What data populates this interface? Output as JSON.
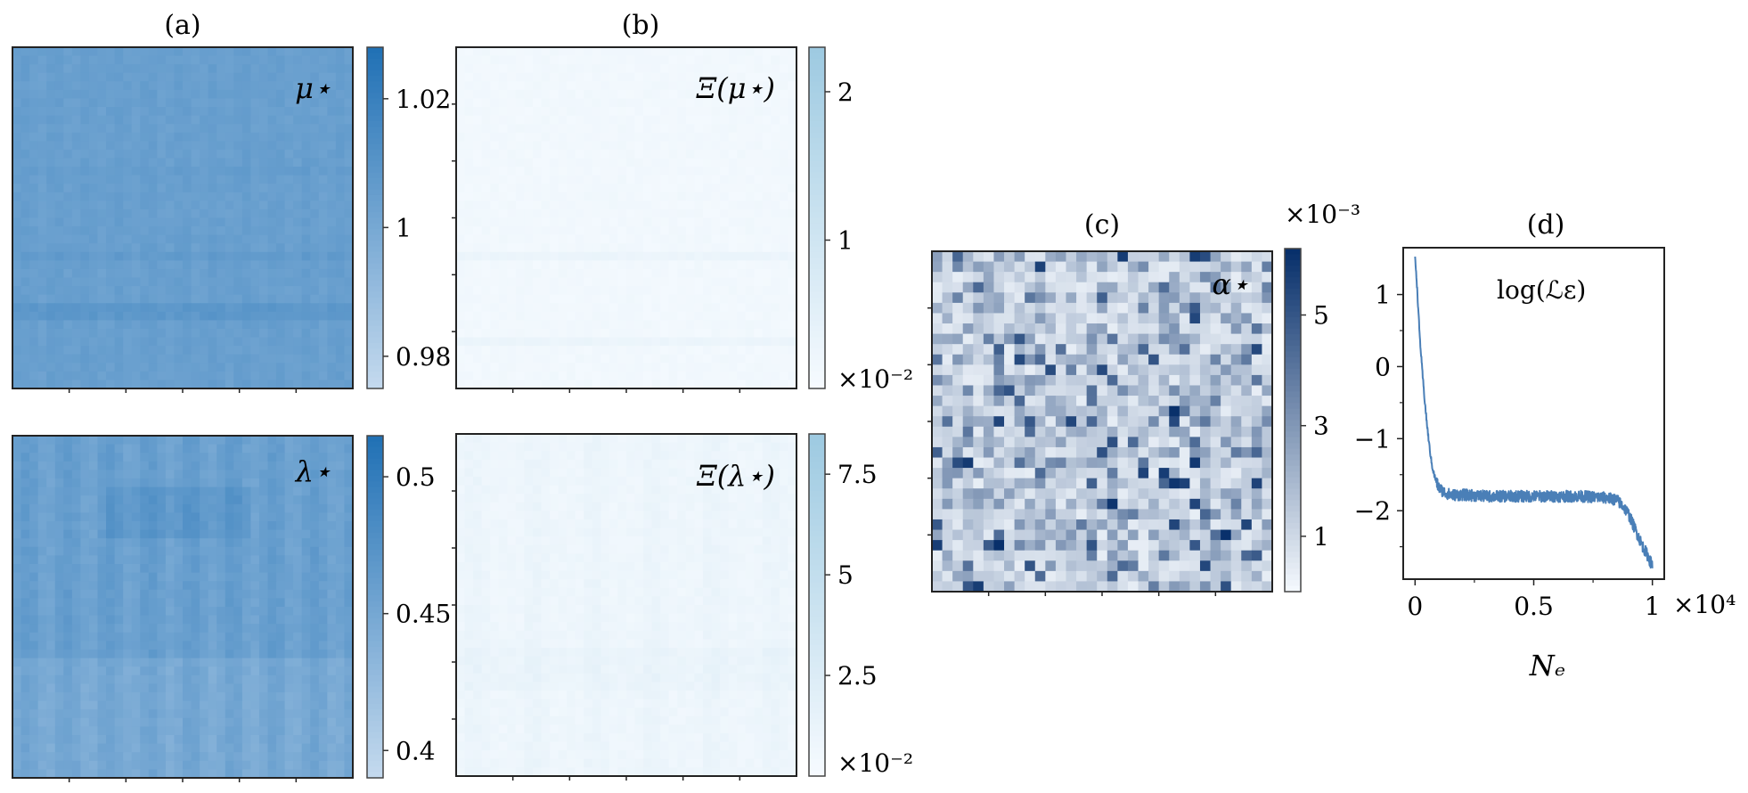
{
  "figure": {
    "panels": [
      {
        "id": "a",
        "label": "(a)"
      },
      {
        "id": "b",
        "label": "(b)"
      },
      {
        "id": "c",
        "label": "(c)"
      },
      {
        "id": "d",
        "label": "(d)"
      }
    ]
  },
  "chart_data": [
    {
      "type": "heatmap",
      "panel": "(a) top",
      "title": "",
      "annotation": "μ⋆",
      "colorbar": {
        "ticks": [
          "1.02",
          "1",
          "0.98"
        ],
        "tick_values": [
          1.02,
          1.0,
          0.98
        ],
        "range": [
          0.975,
          1.028
        ]
      },
      "colormap": [
        "#c6dbef",
        "#2171b5"
      ],
      "grid": {
        "rows": 40,
        "cols": 40
      },
      "value_level": 1.005,
      "pattern": "near-uniform mid-blue with faint horizontal striping"
    },
    {
      "type": "heatmap",
      "panel": "(a) bottom",
      "title": "",
      "annotation": "λ⋆",
      "colorbar": {
        "ticks": [
          "0.5",
          "0.45",
          "0.4"
        ],
        "tick_values": [
          0.5,
          0.45,
          0.4
        ],
        "range": [
          0.39,
          0.515
        ]
      },
      "colormap": [
        "#c6dbef",
        "#2171b5"
      ],
      "grid": {
        "rows": 40,
        "cols": 40
      },
      "value_level": 0.46,
      "pattern": "near-uniform mid-blue with faint vertical striping"
    },
    {
      "type": "heatmap",
      "panel": "(b) top",
      "title": "",
      "annotation": "Ξ(μ⋆)",
      "colorbar": {
        "ticks": [
          "2",
          "1"
        ],
        "tick_values": [
          2,
          1
        ],
        "range": [
          0,
          2.3
        ],
        "offset_label": "×10⁻²"
      },
      "colormap": [
        "#f7fbff",
        "#9ecae1"
      ],
      "grid": {
        "rows": 40,
        "cols": 40
      },
      "value_level": 0.1,
      "pattern": "very light, nearly white"
    },
    {
      "type": "heatmap",
      "panel": "(b) bottom",
      "title": "",
      "annotation": "Ξ(λ⋆)",
      "colorbar": {
        "ticks": [
          "7.5",
          "5",
          "2.5"
        ],
        "tick_values": [
          7.5,
          5,
          2.5
        ],
        "range": [
          0,
          8.5
        ],
        "offset_label": "×10⁻²"
      },
      "colormap": [
        "#f7fbff",
        "#9ecae1"
      ],
      "grid": {
        "rows": 40,
        "cols": 40
      },
      "value_level": 0.6,
      "pattern": "very light with faint blotches"
    },
    {
      "type": "heatmap",
      "panel": "(c)",
      "title": "",
      "annotation": "α⋆",
      "colorbar": {
        "ticks": [
          "5",
          "3",
          "1"
        ],
        "tick_values": [
          5,
          3,
          1
        ],
        "range": [
          0,
          6.2
        ],
        "offset_label": "×10⁻³"
      },
      "colormap": [
        "#f7fbff",
        "#08306b"
      ],
      "grid": {
        "rows": 33,
        "cols": 33
      },
      "pattern": "random speckle of light to dark blue cells"
    },
    {
      "type": "line",
      "panel": "(d)",
      "title": "",
      "annotation": "log(ℒε)",
      "xlabel": "Nₑ",
      "xlim": [
        -0.05,
        1.05
      ],
      "ylim": [
        -2.95,
        1.65
      ],
      "xticks": [
        "0",
        "0.5",
        "1"
      ],
      "xtick_values": [
        0,
        0.5,
        1
      ],
      "x_offset_label": "×10⁴",
      "yticks": [
        "1",
        "0",
        "−1",
        "−2"
      ],
      "ytick_values": [
        1,
        0,
        -1,
        -2
      ],
      "color": "#4a7fb7",
      "series": [
        {
          "x": [
            0,
            0.005,
            0.01,
            0.015,
            0.02,
            0.03,
            0.04,
            0.05,
            0.06,
            0.07,
            0.08,
            0.09,
            0.1,
            0.12,
            0.15,
            0.2,
            0.3,
            0.4,
            0.5,
            0.6,
            0.7,
            0.8,
            0.85,
            0.88,
            0.9,
            0.92,
            0.94,
            0.96,
            0.98,
            0.99,
            1.0
          ],
          "values": [
            1.5,
            1.3,
            1.0,
            0.7,
            0.4,
            -0.05,
            -0.45,
            -0.8,
            -1.1,
            -1.35,
            -1.5,
            -1.6,
            -1.68,
            -1.74,
            -1.78,
            -1.78,
            -1.8,
            -1.8,
            -1.8,
            -1.8,
            -1.8,
            -1.82,
            -1.85,
            -1.95,
            -2.05,
            -2.2,
            -2.35,
            -2.5,
            -2.62,
            -2.7,
            -2.75
          ]
        }
      ]
    }
  ]
}
